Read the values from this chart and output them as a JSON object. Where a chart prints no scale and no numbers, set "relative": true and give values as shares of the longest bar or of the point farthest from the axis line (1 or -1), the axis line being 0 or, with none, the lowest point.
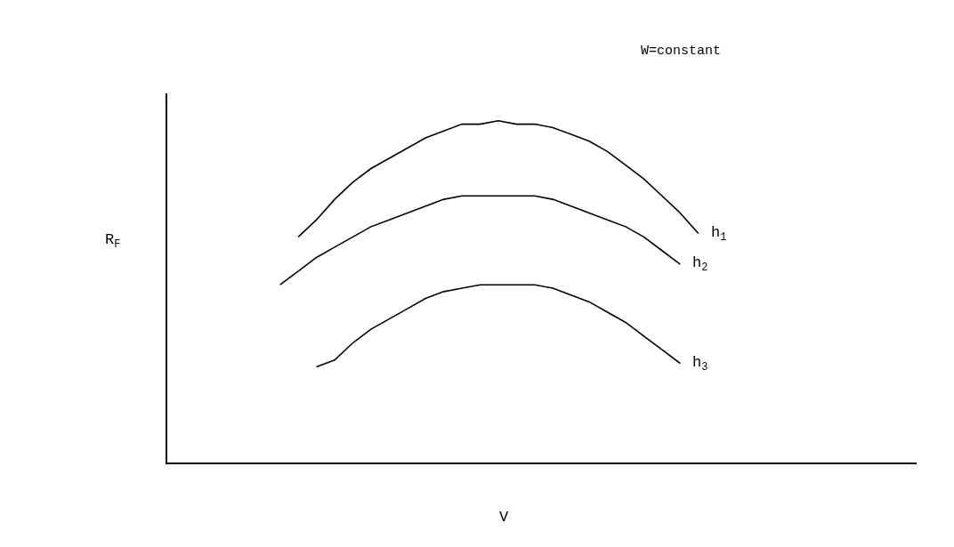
{
  "chart_data": {
    "type": "line",
    "relative": true,
    "xlabel": "V",
    "annotations": [
      "W=constant",
      "R$_{F}$"
    ],
    "categories": [
      null,
      null,
      null,
      null,
      null,
      null,
      null,
      null,
      null,
      null,
      null,
      null,
      null,
      null,
      null,
      null,
      null,
      null,
      null,
      null,
      null,
      null,
      null,
      null
    ],
    "legend": false,
    "marker": "none",
    "line_style": "solid",
    "series": [
      {
        "name": "h$_{1}$",
        "color": "#000000",
        "values": [
          null,
          0.66,
          0.71,
          0.77,
          0.82,
          0.86,
          0.89,
          0.92,
          0.95,
          0.97,
          0.99,
          0.99,
          1.0,
          0.99,
          0.99,
          0.98,
          0.96,
          0.94,
          0.91,
          0.87,
          0.83,
          0.78,
          0.73,
          0.67
        ]
      },
      {
        "name": "h$_{2}$",
        "color": "#000000",
        "values": [
          0.52,
          0.56,
          0.6,
          0.63,
          0.66,
          0.69,
          0.71,
          0.73,
          0.75,
          0.77,
          0.78,
          0.78,
          0.78,
          0.78,
          0.78,
          0.77,
          0.75,
          0.73,
          0.71,
          0.69,
          0.66,
          0.62,
          0.58,
          null
        ]
      },
      {
        "name": "h$_{3}$",
        "color": "#000000",
        "values": [
          null,
          null,
          0.28,
          0.3,
          0.35,
          0.39,
          0.42,
          0.45,
          0.48,
          0.5,
          0.51,
          0.52,
          0.52,
          0.52,
          0.52,
          0.51,
          0.49,
          0.47,
          0.44,
          0.41,
          0.37,
          0.33,
          0.29,
          null
        ]
      }
    ]
  }
}
